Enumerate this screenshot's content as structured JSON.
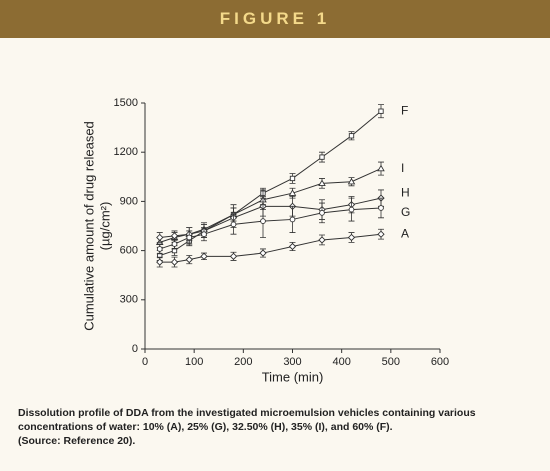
{
  "header": {
    "title": "FIGURE 1"
  },
  "chart_data": {
    "type": "line",
    "xlabel": "Time (min)",
    "ylabel": [
      "Cumulative amount of drug released",
      "(µg/cm²)"
    ],
    "xlim": [
      0,
      600
    ],
    "xticks": [
      0,
      100,
      200,
      300,
      400,
      500,
      600
    ],
    "ylim": [
      0,
      1500
    ],
    "yticks": [
      0,
      300,
      600,
      900,
      1200,
      1500
    ],
    "x": [
      30,
      60,
      90,
      120,
      180,
      240,
      300,
      360,
      420,
      480
    ],
    "color": "#333333",
    "series": [
      {
        "name": "F",
        "values": [
          570,
          600,
          660,
          720,
          820,
          950,
          1040,
          1170,
          1300,
          1450
        ],
        "errors": [
          30,
          30,
          30,
          40,
          40,
          30,
          30,
          30,
          25,
          40
        ]
      },
      {
        "name": "I",
        "values": [
          650,
          680,
          700,
          730,
          820,
          910,
          950,
          1010,
          1020,
          1100
        ],
        "errors": [
          30,
          30,
          40,
          40,
          60,
          60,
          30,
          30,
          25,
          40
        ]
      },
      {
        "name": "H",
        "values": [
          680,
          690,
          700,
          720,
          800,
          870,
          870,
          850,
          880,
          920
        ],
        "errors": [
          30,
          30,
          40,
          40,
          60,
          60,
          60,
          60,
          50,
          50
        ]
      },
      {
        "name": "G",
        "values": [
          610,
          640,
          680,
          700,
          760,
          780,
          790,
          830,
          850,
          860
        ],
        "errors": [
          30,
          30,
          40,
          40,
          60,
          100,
          80,
          60,
          70,
          60
        ]
      },
      {
        "name": "A",
        "values": [
          530,
          530,
          545,
          565,
          565,
          585,
          625,
          665,
          680,
          700
        ],
        "errors": [
          30,
          30,
          25,
          20,
          25,
          25,
          25,
          30,
          30,
          30
        ]
      }
    ]
  },
  "caption": {
    "text": "Dissolution profile of DDA from the investigated microemulsion vehicles containing various concentrations of water: 10% (A), 25% (G), 32.50% (H), 35% (I), and 60% (F).",
    "source": "(Source: Reference 20)."
  }
}
